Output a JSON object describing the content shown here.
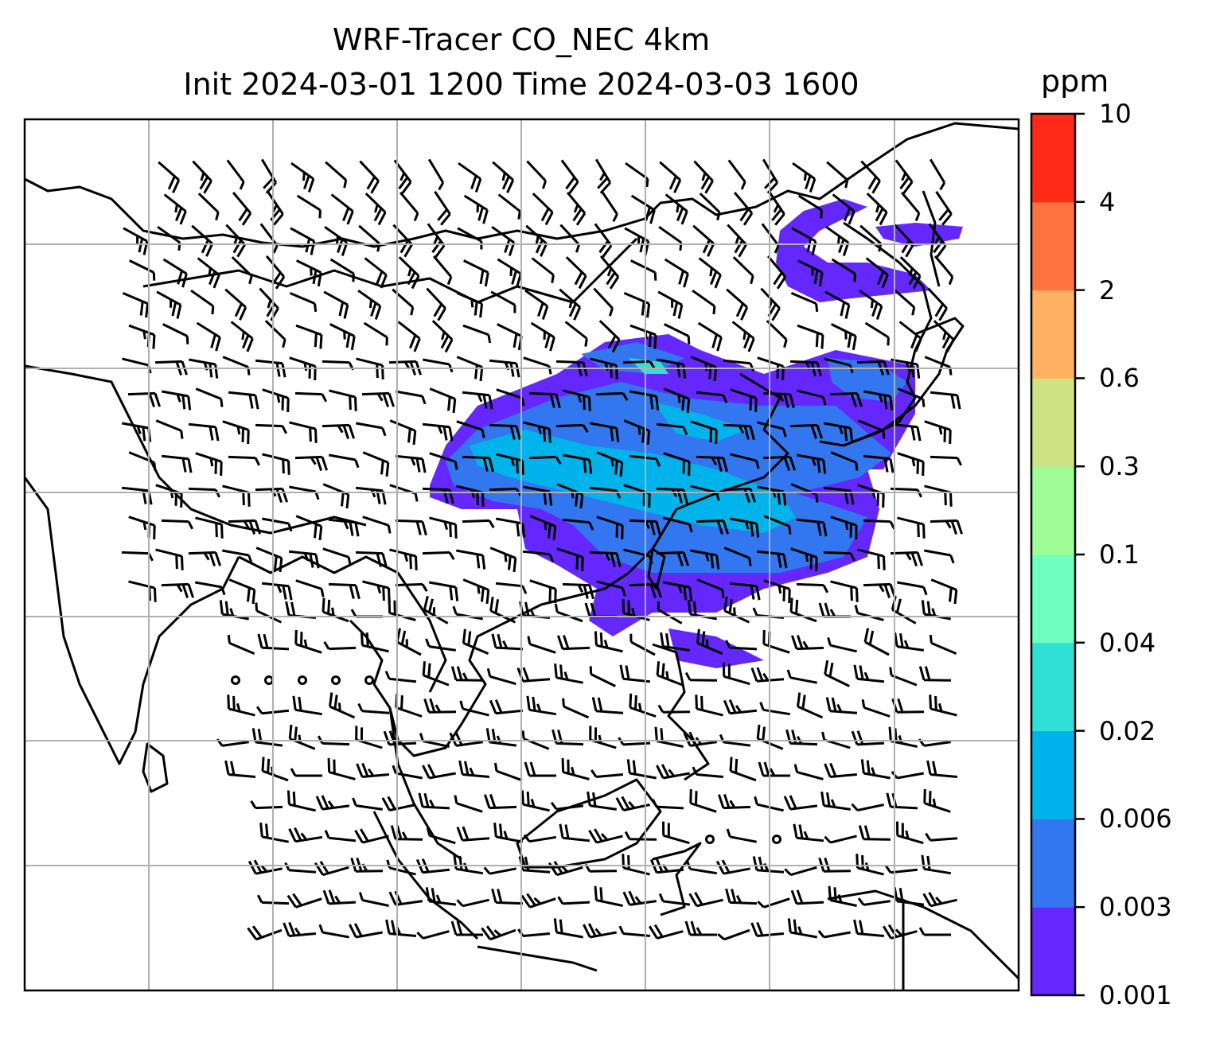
{
  "title": {
    "line1": "WRF-Tracer CO_NEC 4km",
    "line2": "Init 2024-03-01 1200 Time 2024-03-03 1600"
  },
  "colorbar": {
    "unit": "ppm",
    "levels": [
      "0.001",
      "0.003",
      "0.006",
      "0.02",
      "0.04",
      "0.1",
      "0.3",
      "0.6",
      "2",
      "4",
      "10"
    ],
    "colors": [
      "#6428ff",
      "#3277f0",
      "#00b4eb",
      "#2ee0d6",
      "#6cffbf",
      "#9efc96",
      "#cfe285",
      "#ffb061",
      "#ff7340",
      "#ff2a15"
    ]
  },
  "map": {
    "projection": "lat-lon",
    "gridlines": true,
    "coastlines": true,
    "overlay": "wind-barbs",
    "field": "CO tracer concentration"
  }
}
